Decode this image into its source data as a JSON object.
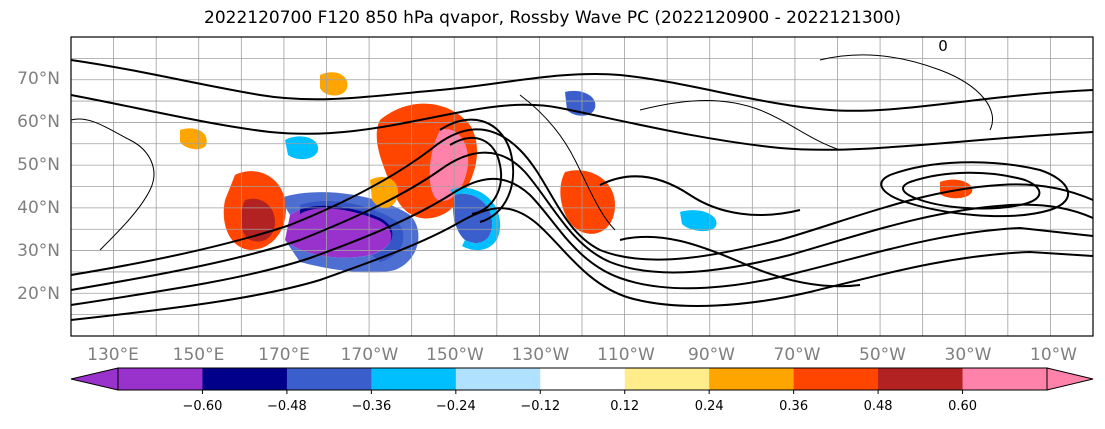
{
  "chart_data": {
    "type": "map",
    "title": "2022120700 F120 850 hPa qvapor, Rossby Wave PC (2022120900 - 2022121300)",
    "lat_ticks": [
      "70°N",
      "60°N",
      "50°N",
      "40°N",
      "30°N",
      "20°N"
    ],
    "lon_ticks": [
      "130°E",
      "150°E",
      "170°E",
      "170°W",
      "150°W",
      "130°W",
      "110°W",
      "90°W",
      "70°W",
      "50°W",
      "30°W",
      "10°W"
    ],
    "colorbar": {
      "labels": [
        "−0.60",
        "−0.48",
        "−0.36",
        "−0.24",
        "−0.12",
        "0.12",
        "0.24",
        "0.36",
        "0.48",
        "0.60"
      ],
      "colors": [
        "#9932cc",
        "#00008b",
        "#3a5fcd",
        "#00bfff",
        "#b0e2ff",
        "#ffffff",
        "#ffec8b",
        "#ffa500",
        "#ff4500",
        "#b22222",
        "#ff82ab",
        "#ff82ab"
      ],
      "extend": "both"
    },
    "contour_label": "0"
  }
}
